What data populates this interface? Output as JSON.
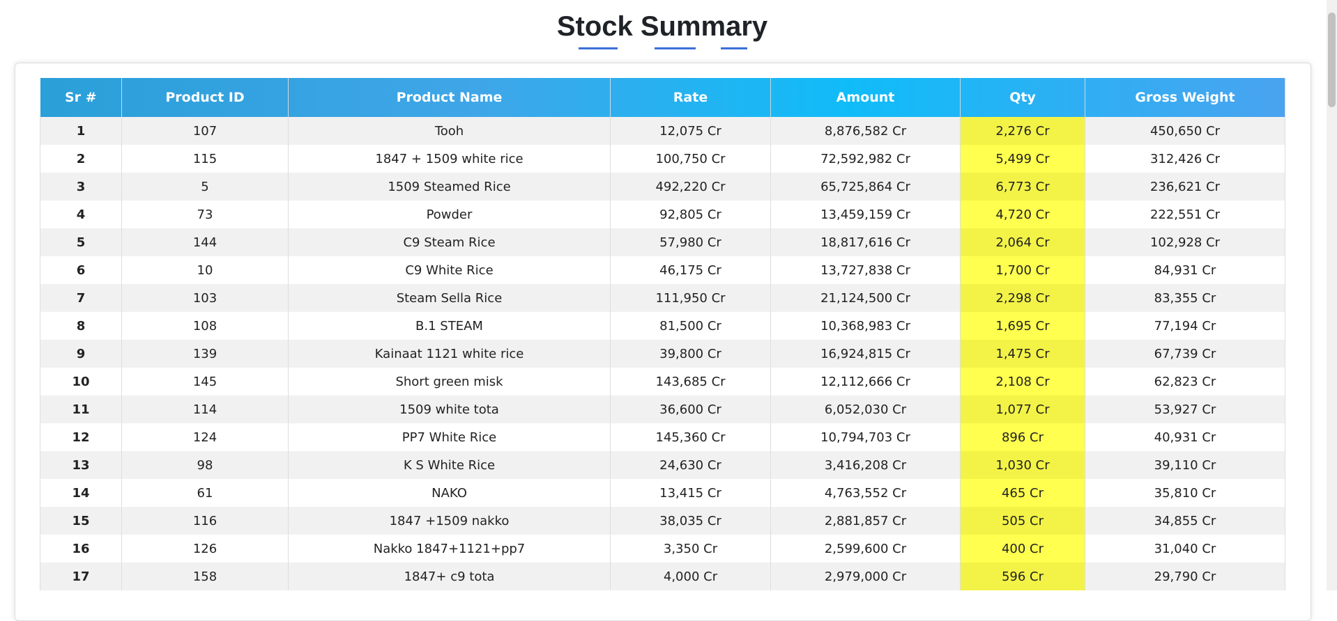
{
  "title": "Stock Summary",
  "table": {
    "headers": [
      "Sr #",
      "Product ID",
      "Product Name",
      "Rate",
      "Amount",
      "Qty",
      "Gross Weight"
    ],
    "rows": [
      [
        "1",
        "107",
        "Tooh",
        "12,075 Cr",
        "8,876,582 Cr",
        "2,276 Cr",
        "450,650 Cr"
      ],
      [
        "2",
        "115",
        "1847 + 1509 white rice",
        "100,750 Cr",
        "72,592,982 Cr",
        "5,499 Cr",
        "312,426 Cr"
      ],
      [
        "3",
        "5",
        "1509 Steamed Rice",
        "492,220 Cr",
        "65,725,864 Cr",
        "6,773 Cr",
        "236,621 Cr"
      ],
      [
        "4",
        "73",
        "Powder",
        "92,805 Cr",
        "13,459,159 Cr",
        "4,720 Cr",
        "222,551 Cr"
      ],
      [
        "5",
        "144",
        "C9 Steam Rice",
        "57,980 Cr",
        "18,817,616 Cr",
        "2,064 Cr",
        "102,928 Cr"
      ],
      [
        "6",
        "10",
        "C9 White Rice",
        "46,175 Cr",
        "13,727,838 Cr",
        "1,700 Cr",
        "84,931 Cr"
      ],
      [
        "7",
        "103",
        "Steam Sella Rice",
        "111,950 Cr",
        "21,124,500 Cr",
        "2,298 Cr",
        "83,355 Cr"
      ],
      [
        "8",
        "108",
        "B.1 STEAM",
        "81,500 Cr",
        "10,368,983 Cr",
        "1,695 Cr",
        "77,194 Cr"
      ],
      [
        "9",
        "139",
        "Kainaat 1121 white rice",
        "39,800 Cr",
        "16,924,815 Cr",
        "1,475 Cr",
        "67,739 Cr"
      ],
      [
        "10",
        "145",
        "Short green misk",
        "143,685 Cr",
        "12,112,666 Cr",
        "2,108 Cr",
        "62,823 Cr"
      ],
      [
        "11",
        "114",
        "1509 white tota",
        "36,600 Cr",
        "6,052,030 Cr",
        "1,077 Cr",
        "53,927 Cr"
      ],
      [
        "12",
        "124",
        "PP7 White Rice",
        "145,360 Cr",
        "10,794,703 Cr",
        "896 Cr",
        "40,931 Cr"
      ],
      [
        "13",
        "98",
        "K S White Rice",
        "24,630 Cr",
        "3,416,208 Cr",
        "1,030 Cr",
        "39,110 Cr"
      ],
      [
        "14",
        "61",
        "NAKO",
        "13,415 Cr",
        "4,763,552 Cr",
        "465 Cr",
        "35,810 Cr"
      ],
      [
        "15",
        "116",
        "1847 +1509 nakko",
        "38,035 Cr",
        "2,881,857 Cr",
        "505 Cr",
        "34,855 Cr"
      ],
      [
        "16",
        "126",
        "Nakko 1847+1121+pp7",
        "3,350 Cr",
        "2,599,600 Cr",
        "400 Cr",
        "31,040 Cr"
      ],
      [
        "17",
        "158",
        "1847+ c9 tota",
        "4,000 Cr",
        "2,979,000 Cr",
        "596 Cr",
        "29,790 Cr"
      ]
    ]
  }
}
